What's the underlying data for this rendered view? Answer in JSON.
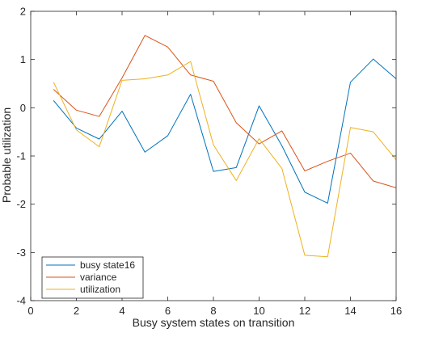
{
  "chart_data": {
    "type": "line",
    "title": "",
    "xlabel": "Busy system states on transition",
    "ylabel": "Probable utilization",
    "xlim": [
      0,
      16
    ],
    "ylim": [
      -4,
      2
    ],
    "xticks": [
      0,
      2,
      4,
      6,
      8,
      10,
      12,
      14,
      16
    ],
    "yticks": [
      -4,
      -3,
      -2,
      -1,
      0,
      1,
      2
    ],
    "grid": false,
    "legend_position": "bottom-left",
    "x": [
      1,
      2,
      3,
      4,
      5,
      6,
      7,
      8,
      9,
      10,
      11,
      12,
      13,
      14,
      15,
      16
    ],
    "series": [
      {
        "name": "busy state16",
        "color": "#0072bd",
        "values": [
          0.15,
          -0.42,
          -0.65,
          -0.07,
          -0.92,
          -0.58,
          0.28,
          -1.32,
          -1.24,
          0.04,
          -0.79,
          -1.75,
          -1.98,
          0.53,
          1.01,
          0.6
        ]
      },
      {
        "name": "variance",
        "color": "#d95319",
        "values": [
          0.38,
          -0.05,
          -0.18,
          0.62,
          1.5,
          1.26,
          0.68,
          0.55,
          -0.31,
          -0.75,
          -0.48,
          -1.31,
          -1.11,
          -0.94,
          -1.52,
          -1.66
        ]
      },
      {
        "name": "utilization",
        "color": "#edb120",
        "values": [
          0.53,
          -0.46,
          -0.81,
          0.57,
          0.6,
          0.68,
          0.96,
          -0.77,
          -1.51,
          -0.64,
          -1.26,
          -3.06,
          -3.09,
          -0.41,
          -0.5,
          -1.08
        ]
      }
    ]
  }
}
